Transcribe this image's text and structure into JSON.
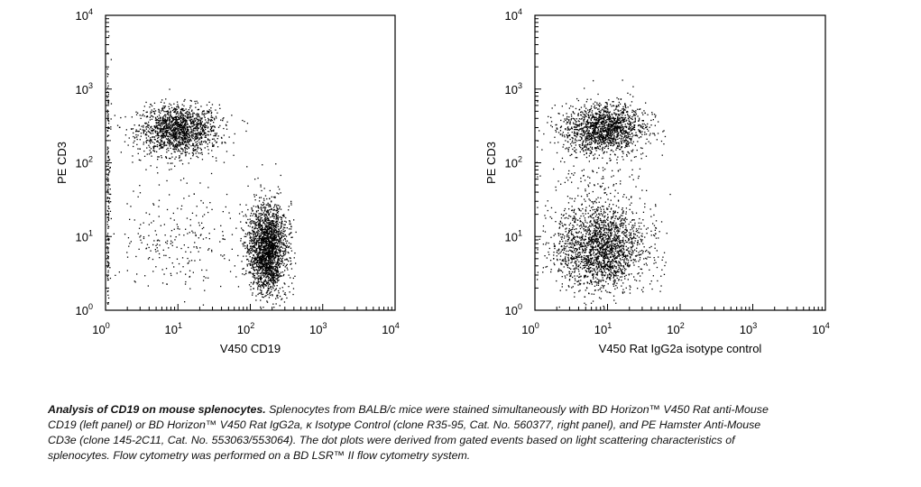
{
  "chart_data": [
    {
      "type": "scatter",
      "xlabel": "V450 CD19",
      "ylabel": "PE CD3",
      "xscale": "log",
      "yscale": "log",
      "xlim": [
        1,
        10000
      ],
      "ylim": [
        1,
        10000
      ],
      "ticks": [
        {
          "base": "10",
          "exp": "0"
        },
        {
          "base": "10",
          "exp": "1"
        },
        {
          "base": "10",
          "exp": "2"
        },
        {
          "base": "10",
          "exp": "3"
        },
        {
          "base": "10",
          "exp": "4"
        }
      ],
      "populations": [
        {
          "x": 10,
          "y": 280,
          "spread_x": 0.28,
          "spread_y": 0.17,
          "count": 1500
        },
        {
          "x": 170,
          "y": 7,
          "spread_x": 0.13,
          "spread_y": 0.3,
          "count": 2100
        },
        {
          "x": 12,
          "y": 10,
          "spread_x": 0.45,
          "spread_y": 0.4,
          "count": 260
        },
        {
          "x": 1.05,
          "y": 40,
          "spread_x": 0.02,
          "spread_y": 0.9,
          "count": 160
        }
      ]
    },
    {
      "type": "scatter",
      "xlabel": "V450 Rat IgG2a isotype control",
      "ylabel": "PE CD3",
      "xscale": "log",
      "yscale": "log",
      "xlim": [
        1,
        10000
      ],
      "ylim": [
        1,
        10000
      ],
      "ticks": [
        {
          "base": "10",
          "exp": "0"
        },
        {
          "base": "10",
          "exp": "1"
        },
        {
          "base": "10",
          "exp": "2"
        },
        {
          "base": "10",
          "exp": "3"
        },
        {
          "base": "10",
          "exp": "4"
        }
      ],
      "populations": [
        {
          "x": 9,
          "y": 300,
          "spread_x": 0.28,
          "spread_y": 0.17,
          "count": 1500
        },
        {
          "x": 8,
          "y": 7,
          "spread_x": 0.3,
          "spread_y": 0.28,
          "count": 2000
        },
        {
          "x": 5,
          "y": 60,
          "spread_x": 0.35,
          "spread_y": 0.35,
          "count": 180
        }
      ]
    }
  ],
  "caption": {
    "bold": "Analysis of CD19 on mouse splenocytes.",
    "text": " Splenocytes from BALB/c mice were stained simultaneously with BD Horizon™ V450 Rat anti-Mouse CD19 (left panel) or BD Horizon™ V450 Rat IgG2a, κ Isotype Control (clone R35-95, Cat. No. 560377, right panel), and PE Hamster Anti-Mouse CD3e (clone 145-2C11, Cat. No. 553063/553064). The dot plots were derived from gated events based on light scattering characteristics of splenocytes. Flow cytometry was performed on a BD LSR™ II flow cytometry system."
  }
}
